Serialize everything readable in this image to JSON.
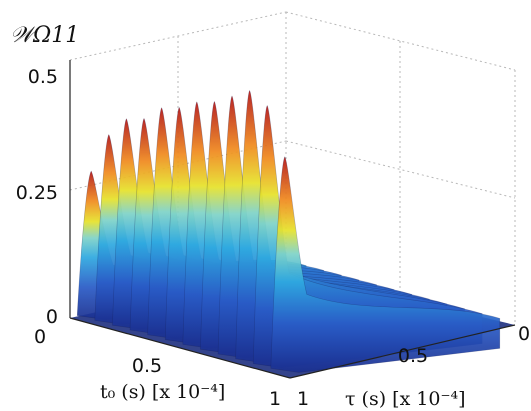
{
  "chart_data": {
    "type": "surface",
    "title": "𝒲Ω11",
    "xlabel": "t₀ (s) [x 10⁻⁴]",
    "ylabel": "τ (s) [x 10⁻⁴]",
    "zlabel": "",
    "x_ticks": [
      "0",
      "0.5",
      "1"
    ],
    "y_ticks": [
      "0",
      "0.5",
      "1"
    ],
    "z_ticks": [
      "0",
      "0.25",
      "0.5"
    ],
    "xlim": [
      0,
      1
    ],
    "ylim": [
      0,
      1
    ],
    "zlim": [
      0,
      0.5
    ],
    "grid": true,
    "colormap": "jet",
    "ridges": [
      {
        "t0": 0.06,
        "peak": 0.28
      },
      {
        "t0": 0.14,
        "peak": 0.36
      },
      {
        "t0": 0.22,
        "peak": 0.4
      },
      {
        "t0": 0.3,
        "peak": 0.41
      },
      {
        "t0": 0.38,
        "peak": 0.44
      },
      {
        "t0": 0.46,
        "peak": 0.45
      },
      {
        "t0": 0.54,
        "peak": 0.47
      },
      {
        "t0": 0.62,
        "peak": 0.48
      },
      {
        "t0": 0.7,
        "peak": 0.5
      },
      {
        "t0": 0.78,
        "peak": 0.52
      },
      {
        "t0": 0.86,
        "peak": 0.5
      },
      {
        "t0": 0.94,
        "peak": 0.41
      }
    ]
  }
}
